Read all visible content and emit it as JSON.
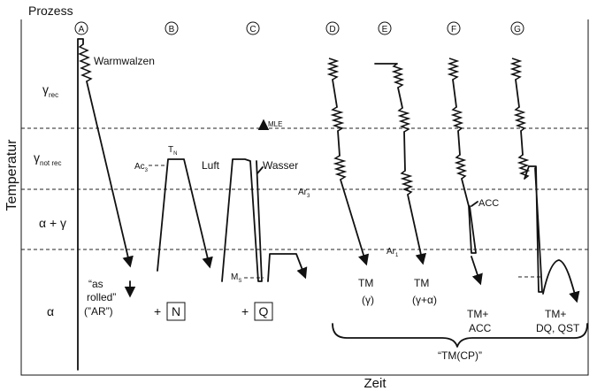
{
  "header": {
    "process_label": "Prozess"
  },
  "axes": {
    "y_label": "Temperatur",
    "x_label": "Zeit"
  },
  "regions": [
    {
      "main": "γ",
      "sub": "rec"
    },
    {
      "main": "γ",
      "sub": "not rec"
    },
    {
      "main": "α + γ",
      "sub": ""
    },
    {
      "main": "α",
      "sub": ""
    }
  ],
  "columns": [
    "A",
    "B",
    "C",
    "D",
    "E",
    "F",
    "G"
  ],
  "temperatures": {
    "mle": "MLE",
    "ac3": "Ac",
    "ac3_sub": "3",
    "tn": "T",
    "tn_sub": "N",
    "ar3": "Ar",
    "ar3_sub": "3",
    "ar1": "Ar",
    "ar1_sub": "1",
    "ms": "M",
    "ms_sub": "S"
  },
  "labels": {
    "warmwalzen": "Warmwalzen",
    "luft": "Luft",
    "wasser": "Wasser",
    "acc_label": "ACC",
    "as_rolled_1": "“as",
    "as_rolled_2": "rolled”",
    "as_rolled_3": "(”AR”)",
    "plus": "+",
    "n_box": "N",
    "q_box": "Q",
    "tm_1": "TM",
    "tm_1_sub": "(γ)",
    "tm_2": "TM",
    "tm_2_sub": "(γ+α)",
    "tm_acc_1": "TM+",
    "tm_acc_2": "ACC",
    "tm_dq_1": "TM+",
    "tm_dq_2": "DQ, QST",
    "tm_cp": "“TM(CP)”"
  }
}
